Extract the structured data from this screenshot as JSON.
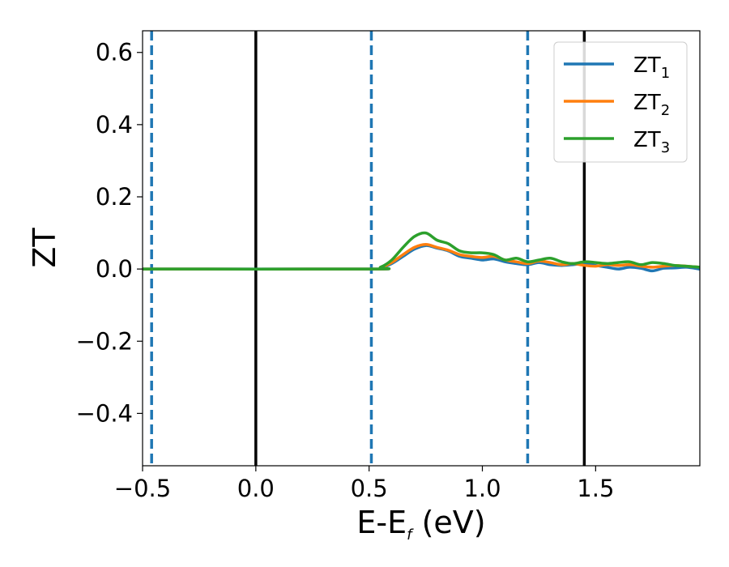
{
  "chart_data": {
    "type": "line",
    "xlabel": {
      "main": "E-E",
      "sub": "f",
      "unit": " (eV)"
    },
    "ylabel": "ZT",
    "xlim": [
      -0.5,
      1.96
    ],
    "ylim": [
      -0.545,
      0.66
    ],
    "xticks": [
      -0.5,
      0.0,
      0.5,
      1.0,
      1.5
    ],
    "xtick_labels": [
      "−0.5",
      "0.0",
      "0.5",
      "1.0",
      "1.5"
    ],
    "yticks": [
      -0.4,
      -0.2,
      0.0,
      0.2,
      0.4,
      0.6
    ],
    "ytick_labels": [
      "−0.4",
      "−0.2",
      "0.0",
      "0.2",
      "0.4",
      "0.6"
    ],
    "grid": false,
    "legend_position": "top-right",
    "vlines": [
      {
        "x": -0.46,
        "style": "dashed",
        "color": "#1f77b4"
      },
      {
        "x": 0.0,
        "style": "solid",
        "color": "#000000"
      },
      {
        "x": 0.51,
        "style": "dashed",
        "color": "#1f77b4"
      },
      {
        "x": 1.2,
        "style": "dashed",
        "color": "#1f77b4"
      },
      {
        "x": 1.45,
        "style": "solid",
        "color": "#000000"
      }
    ],
    "series": [
      {
        "legend_main": "ZT",
        "legend_sub": "1",
        "color": "#1f77b4",
        "x": [
          -0.5,
          0.5,
          0.55,
          0.6,
          0.65,
          0.7,
          0.75,
          0.8,
          0.85,
          0.9,
          0.95,
          1.0,
          1.05,
          1.1,
          1.15,
          1.2,
          1.25,
          1.3,
          1.35,
          1.4,
          1.45,
          1.5,
          1.55,
          1.6,
          1.65,
          1.7,
          1.75,
          1.8,
          1.85,
          1.9,
          1.96
        ],
        "y": [
          0.0,
          0.0,
          0.003,
          0.015,
          0.035,
          0.055,
          0.065,
          0.058,
          0.05,
          0.035,
          0.03,
          0.025,
          0.028,
          0.02,
          0.015,
          0.012,
          0.018,
          0.012,
          0.01,
          0.012,
          0.015,
          0.01,
          0.005,
          0.0,
          0.005,
          0.002,
          -0.005,
          0.002,
          0.003,
          0.005,
          0.0
        ]
      },
      {
        "legend_main": "ZT",
        "legend_sub": "2",
        "color": "#ff7f0e",
        "x": [
          -0.5,
          0.5,
          0.55,
          0.6,
          0.65,
          0.7,
          0.75,
          0.8,
          0.85,
          0.9,
          0.95,
          1.0,
          1.05,
          1.1,
          1.15,
          1.2,
          1.25,
          1.3,
          1.35,
          1.4,
          1.45,
          1.5,
          1.55,
          1.6,
          1.65,
          1.7,
          1.75,
          1.8,
          1.85,
          1.9,
          1.96
        ],
        "y": [
          0.0,
          0.0,
          0.004,
          0.018,
          0.04,
          0.06,
          0.068,
          0.06,
          0.052,
          0.04,
          0.035,
          0.032,
          0.035,
          0.025,
          0.02,
          0.015,
          0.022,
          0.018,
          0.012,
          0.015,
          0.01,
          0.008,
          0.012,
          0.01,
          0.012,
          0.008,
          0.005,
          0.008,
          0.01,
          0.008,
          0.005
        ]
      },
      {
        "legend_main": "ZT",
        "legend_sub": "3",
        "color": "#2ca02c",
        "x": [
          -0.5,
          0.5,
          0.55,
          0.6,
          0.65,
          0.7,
          0.75,
          0.8,
          0.85,
          0.9,
          0.95,
          1.0,
          1.05,
          1.1,
          1.15,
          1.2,
          1.25,
          1.3,
          1.35,
          1.4,
          1.45,
          1.5,
          1.55,
          1.6,
          1.65,
          1.7,
          1.75,
          1.8,
          1.85,
          1.9,
          1.96
        ],
        "y": [
          0.0,
          0.0,
          0.005,
          0.025,
          0.06,
          0.09,
          0.1,
          0.08,
          0.07,
          0.05,
          0.045,
          0.045,
          0.04,
          0.025,
          0.03,
          0.02,
          0.025,
          0.03,
          0.02,
          0.015,
          0.02,
          0.018,
          0.015,
          0.018,
          0.02,
          0.012,
          0.018,
          0.015,
          0.01,
          0.008,
          0.005
        ]
      }
    ]
  }
}
